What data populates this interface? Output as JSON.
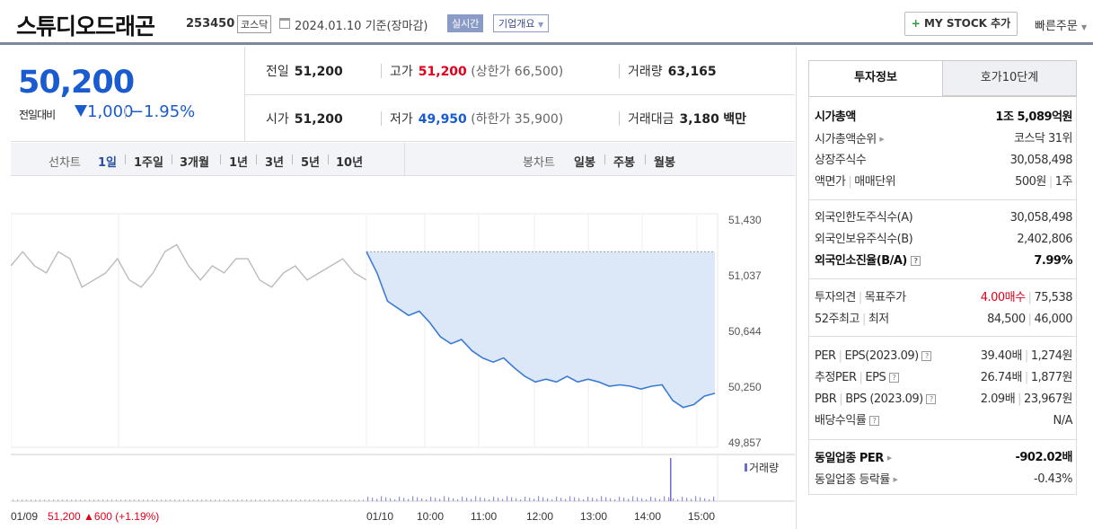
{
  "header": {
    "title": "스튜디오드래곤",
    "code": "253450",
    "market": "코스닥",
    "date": "2024.01.10 기준(장마감)",
    "live": "실시간",
    "company_info": "기업개요",
    "mystock": "MY STOCK 추가",
    "quick_order": "빠른주문"
  },
  "price": {
    "current": "50,200",
    "change_label": "전일대비",
    "change": "1,000",
    "change_pct": "−1.95%",
    "prev_label": "전일",
    "prev": "51,200",
    "high_label": "고가",
    "high": "51,200",
    "upper_limit": "(상한가 66,500)",
    "volume_label": "거래량",
    "volume": "63,165",
    "open_label": "시가",
    "open": "51,200",
    "low_label": "저가",
    "low": "49,950",
    "lower_limit": "(하한가 35,900)",
    "amount_label": "거래대금",
    "amount": "3,180",
    "amount_unit": "백만"
  },
  "periods": {
    "line_label": "선차트",
    "line": [
      "1일",
      "1주일",
      "3개월",
      "1년",
      "3년",
      "5년",
      "10년"
    ],
    "candle_label": "봉차트",
    "candle": [
      "일봉",
      "주봉",
      "월봉"
    ],
    "active": "1일"
  },
  "chart_data": {
    "type": "line",
    "title": "",
    "y_ticks": [
      "51,430",
      "51,037",
      "50,644",
      "50,250",
      "49,857"
    ],
    "ylim": [
      49857,
      51430
    ],
    "x_ticks": [
      "01/09",
      "01/10",
      "10:00",
      "11:00",
      "12:00",
      "13:00",
      "14:00",
      "15:00"
    ],
    "prev_day_label": "01/09",
    "prev_day_summary": "51,200 ▲600 (+1.19%)",
    "volume_legend": "거래량",
    "reference_price": 51200,
    "series": [
      {
        "values": [
          51100,
          51200,
          51100,
          51050,
          51200,
          51150,
          50950,
          51000,
          51050,
          51150,
          51000,
          50950,
          51050,
          51200,
          51250,
          51100,
          51000,
          51100,
          51050,
          51150,
          51150,
          51000,
          50950,
          51050,
          51100,
          51000,
          51050,
          51100,
          51150,
          51050,
          51000
        ]
      },
      {
        "values": [
          51200,
          51050,
          50850,
          50800,
          50750,
          50780,
          50700,
          50600,
          50550,
          50580,
          50500,
          50450,
          50420,
          50450,
          50380,
          50320,
          50280,
          50300,
          50280,
          50320,
          50280,
          50300,
          50280,
          50250,
          50260,
          50250,
          50230,
          50250,
          50260,
          50150,
          50100,
          50120,
          50180,
          50200
        ]
      }
    ]
  },
  "info": {
    "tab_invest": "투자정보",
    "tab_orderbook": "호가10단계",
    "market_cap_label": "시가총액",
    "market_cap": "1조 5,089억원",
    "market_cap_rank_label": "시가총액순위",
    "market_cap_rank": "코스닥 31위",
    "shares_label": "상장주식수",
    "shares": "30,058,498",
    "par_label": "액면가",
    "unit_label": "매매단위",
    "par": "500원",
    "unit": "1주",
    "foreign_limit_label": "외국인한도주식수(A)",
    "foreign_limit": "30,058,498",
    "foreign_hold_label": "외국인보유주식수(B)",
    "foreign_hold": "2,402,806",
    "foreign_ratio_label": "외국인소진율(B/A)",
    "foreign_ratio": "7.99%",
    "opinion_label": "투자의견",
    "target_label": "목표주가",
    "opinion": "4.00매수",
    "target": "75,538",
    "w52_label": "52주최고",
    "w52_low_label": "최저",
    "w52_high": "84,500",
    "w52_low": "46,000",
    "per_label": "PER",
    "eps_label": "EPS(2023.09)",
    "per": "39.40배",
    "eps": "1,274원",
    "est_per_label": "추정PER",
    "est_eps_label": "EPS",
    "est_per": "26.74배",
    "est_eps": "1,877원",
    "pbr_label": "PBR",
    "bps_label": "BPS (2023.09)",
    "pbr": "2.09배",
    "bps": "23,967원",
    "div_label": "배당수익률",
    "div": "N/A",
    "ind_per_label": "동일업종 PER",
    "ind_per": "-902.02배",
    "ind_chg_label": "동일업종 등락률",
    "ind_chg": "-0.43%"
  },
  "colors": {
    "accent_blue": "#1a5bd0",
    "down": "#1a5bd0",
    "up": "#e0001b",
    "line_prev": "#bbbbbb",
    "line_today": "#3a7bd5",
    "fill_today": "#dce8f8"
  }
}
